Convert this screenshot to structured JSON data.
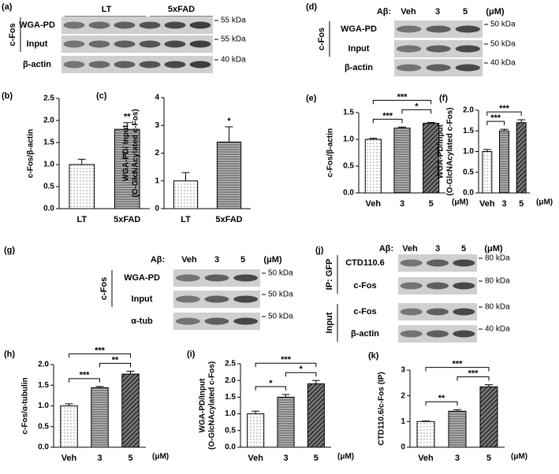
{
  "chart_data": [
    {
      "type": "bar",
      "panel": "(b)",
      "ylabel": [
        "c-Fos/β-actin"
      ],
      "categories": [
        "LT",
        "5xFAD"
      ],
      "values": [
        1.0,
        1.8
      ],
      "errors": [
        0.12,
        0.15
      ],
      "patterns": [
        "dots",
        "hlines"
      ],
      "ylim": [
        0,
        2.5
      ],
      "yticks": [
        {
          "value": 0,
          "label": "0.0"
        },
        0.5,
        {
          "value": 1,
          "label": "1.0"
        },
        1.5,
        {
          "value": 2,
          "label": "2.0"
        },
        2.5
      ],
      "annotations": [
        {
          "text": "**",
          "category": "5xFAD"
        }
      ]
    },
    {
      "type": "bar",
      "panel": "(c)",
      "ylabel": [
        "WGA-PD/ Input",
        "(O-GlcNAcylated c-Fos)"
      ],
      "categories": [
        "LT",
        "5xFAD"
      ],
      "values": [
        1.0,
        2.4
      ],
      "errors": [
        0.3,
        0.55
      ],
      "patterns": [
        "dots",
        "hlines"
      ],
      "ylim": [
        0,
        4
      ],
      "yticks": [
        0,
        1,
        2,
        3,
        4
      ],
      "annotations": [
        {
          "text": "*",
          "category": "5xFAD"
        }
      ]
    },
    {
      "type": "bar",
      "panel": "(e)",
      "ylabel": [
        "c-Fos/β-actin"
      ],
      "categories": [
        "Veh",
        "3",
        "5"
      ],
      "xunit": "(μM)",
      "values": [
        1.0,
        1.21,
        1.3
      ],
      "errors": [
        0.02,
        0.02,
        0.015
      ],
      "patterns": [
        "dots",
        "hlines",
        "diag"
      ],
      "ylim": [
        0,
        1.5
      ],
      "yticks": [
        {
          "value": 0,
          "label": "0.0"
        },
        0.5,
        {
          "value": 1,
          "label": "1.0"
        },
        1.5
      ],
      "brackets": [
        {
          "text": "***",
          "between": [
            "Veh",
            "3"
          ]
        },
        {
          "text": "*",
          "between": [
            "3",
            "5"
          ]
        },
        {
          "text": "***",
          "between": [
            "Veh",
            "5"
          ]
        }
      ]
    },
    {
      "type": "bar",
      "panel": "(f)",
      "ylabel": [
        "WGA-PD/Input",
        "(O-GlcNAcylated c-Fos)"
      ],
      "categories": [
        "Veh",
        "3",
        "5"
      ],
      "xunit": "(μM)",
      "values": [
        1.0,
        1.5,
        1.7
      ],
      "errors": [
        0.05,
        0.04,
        0.07
      ],
      "patterns": [
        "dots",
        "hlines",
        "diag"
      ],
      "ylim": [
        0,
        2
      ],
      "yticks": [
        {
          "value": 0,
          "label": "0.0"
        },
        0.5,
        {
          "value": 1,
          "label": "1.0"
        },
        1.5,
        {
          "value": 2,
          "label": "2.0"
        }
      ],
      "brackets": [
        {
          "text": "***",
          "between": [
            "Veh",
            "3"
          ]
        },
        {
          "text": "***",
          "between": [
            "Veh",
            "5"
          ]
        }
      ]
    },
    {
      "type": "bar",
      "panel": "(h)",
      "ylabel": [
        "c-Fos/α-tubulin"
      ],
      "categories": [
        "Veh",
        "3",
        "5"
      ],
      "xunit": "(μM)",
      "values": [
        1.0,
        1.44,
        1.77
      ],
      "errors": [
        0.05,
        0.03,
        0.07
      ],
      "patterns": [
        "dots",
        "hlines",
        "diag"
      ],
      "ylim": [
        0,
        2
      ],
      "yticks": [
        {
          "value": 0,
          "label": "0.0"
        },
        0.5,
        {
          "value": 1,
          "label": "1.0"
        },
        1.5,
        {
          "value": 2,
          "label": "2.0"
        }
      ],
      "brackets": [
        {
          "text": "***",
          "between": [
            "Veh",
            "3"
          ]
        },
        {
          "text": "**",
          "between": [
            "3",
            "5"
          ]
        },
        {
          "text": "***",
          "between": [
            "Veh",
            "5"
          ]
        }
      ]
    },
    {
      "type": "bar",
      "panel": "(i)",
      "ylabel": [
        "WGA-PD/Input",
        "(O-GlcNAcylated c-Fos)"
      ],
      "categories": [
        "Veh",
        "3",
        "5"
      ],
      "xunit": "(μM)",
      "values": [
        1.0,
        1.5,
        1.9
      ],
      "errors": [
        0.08,
        0.08,
        0.1
      ],
      "patterns": [
        "dots",
        "hlines",
        "diag"
      ],
      "ylim": [
        0,
        2.5
      ],
      "yticks": [
        {
          "value": 0,
          "label": "0.0"
        },
        0.5,
        {
          "value": 1,
          "label": "1.0"
        },
        1.5,
        {
          "value": 2,
          "label": "2.0"
        },
        2.5
      ],
      "brackets": [
        {
          "text": "*",
          "between": [
            "Veh",
            "3"
          ]
        },
        {
          "text": "*",
          "between": [
            "3",
            "5"
          ]
        },
        {
          "text": "***",
          "between": [
            "Veh",
            "5"
          ]
        }
      ]
    },
    {
      "type": "bar",
      "panel": "(k)",
      "ylabel": [
        "CTD110.6/c-Fos (IP)"
      ],
      "categories": [
        "Veh",
        "3",
        "5"
      ],
      "xunit": "(μM)",
      "values": [
        1.0,
        1.4,
        2.35
      ],
      "errors": [
        0.02,
        0.06,
        0.08
      ],
      "patterns": [
        "dots",
        "hlines",
        "diag"
      ],
      "ylim": [
        0,
        3
      ],
      "yticks": [
        0,
        1,
        2,
        3
      ],
      "brackets": [
        {
          "text": "**",
          "between": [
            "Veh",
            "3"
          ]
        },
        {
          "text": "***",
          "between": [
            "3",
            "5"
          ]
        },
        {
          "text": "***",
          "between": [
            "Veh",
            "5"
          ]
        }
      ]
    }
  ],
  "blots": [
    {
      "panel": "(a)",
      "headers": [
        "LT",
        "5xFAD"
      ],
      "groups": [
        {
          "label": "c-Fos",
          "rows": [
            {
              "label": "WGA-PD",
              "kda": "55 kDa"
            },
            {
              "label": "Input",
              "kda": "55 kDa"
            }
          ]
        },
        {
          "rows": [
            {
              "label": "β-actin",
              "kda": "40 kDa"
            }
          ]
        }
      ]
    },
    {
      "panel": "(d)",
      "prefix": "Aβ:",
      "headers": [
        "Veh",
        "3",
        "5"
      ],
      "unit": "(μM)",
      "groups": [
        {
          "label": "c-Fos",
          "rows": [
            {
              "label": "WGA-PD",
              "kda": "50 kDa"
            },
            {
              "label": "Input",
              "kda": "50 kDa"
            }
          ]
        },
        {
          "rows": [
            {
              "label": "β-actin",
              "kda": "40 kDa"
            }
          ]
        }
      ]
    },
    {
      "panel": "(g)",
      "prefix": "Aβ:",
      "headers": [
        "Veh",
        "3",
        "5"
      ],
      "unit": "(μM)",
      "groups": [
        {
          "label": "c-Fos",
          "rows": [
            {
              "label": "WGA-PD",
              "kda": "50 kDa"
            },
            {
              "label": "Input",
              "kda": "50 kDa"
            }
          ]
        },
        {
          "rows": [
            {
              "label": "α-tub",
              "kda": "50 kDa"
            }
          ]
        }
      ]
    },
    {
      "panel": "(j)",
      "prefix": "Aβ:",
      "headers": [
        "Veh",
        "3",
        "5"
      ],
      "unit": "(μM)",
      "groups": [
        {
          "label": "IP: GFP",
          "rows": [
            {
              "label": "CTD110.6",
              "kda": "80 kDa"
            },
            {
              "label": "c-Fos",
              "kda": "80 kDa"
            }
          ]
        },
        {
          "label": "Input",
          "rows": [
            {
              "label": "c-Fos",
              "kda": "80 kDa"
            },
            {
              "label": "β-actin",
              "kda": "40 kDa"
            }
          ]
        }
      ]
    }
  ]
}
